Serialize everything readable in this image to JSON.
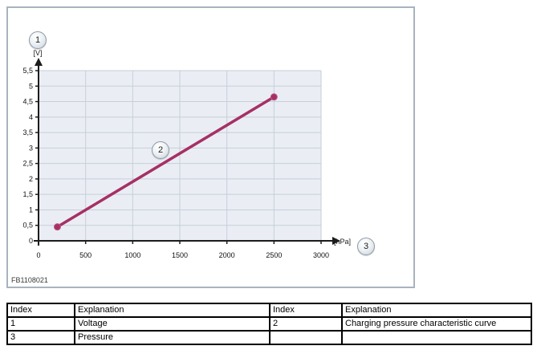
{
  "figure": {
    "code": "FB1108021",
    "badge_1": "1",
    "badge_2": "2",
    "badge_3": "3"
  },
  "chart_data": {
    "type": "line",
    "title": "",
    "xlabel": "[hPa]",
    "ylabel": "[V]",
    "xlim": [
      0,
      3000
    ],
    "ylim": [
      0,
      5.5
    ],
    "x_ticks": [
      0,
      500,
      1000,
      1500,
      2000,
      2500,
      3000
    ],
    "y_ticks": [
      0,
      0.5,
      1,
      1.5,
      2,
      2.5,
      3,
      3.5,
      4,
      4.5,
      5,
      5.5
    ],
    "y_tick_labels": [
      "0",
      "0,5",
      "1",
      "1,5",
      "2",
      "2,5",
      "3",
      "3,5",
      "4",
      "4,5",
      "5",
      "5,5"
    ],
    "grid": true,
    "legend": "none",
    "plot_bg_color": "#eaeef4",
    "grid_color": "#c6cfda",
    "axis_color": "#1c1c1c",
    "line_color": "#a63064",
    "series": [
      {
        "name": "Charging pressure characteristic curve",
        "x": [
          200,
          2500
        ],
        "y": [
          0.45,
          4.65
        ],
        "markers": true
      }
    ]
  },
  "table": {
    "columns": [
      "Index",
      "Explanation",
      "Index",
      "Explanation"
    ],
    "rows": [
      [
        "1",
        "Voltage",
        "2",
        "Charging pressure characteristic curve"
      ],
      [
        "3",
        "Pressure",
        "",
        ""
      ]
    ]
  }
}
